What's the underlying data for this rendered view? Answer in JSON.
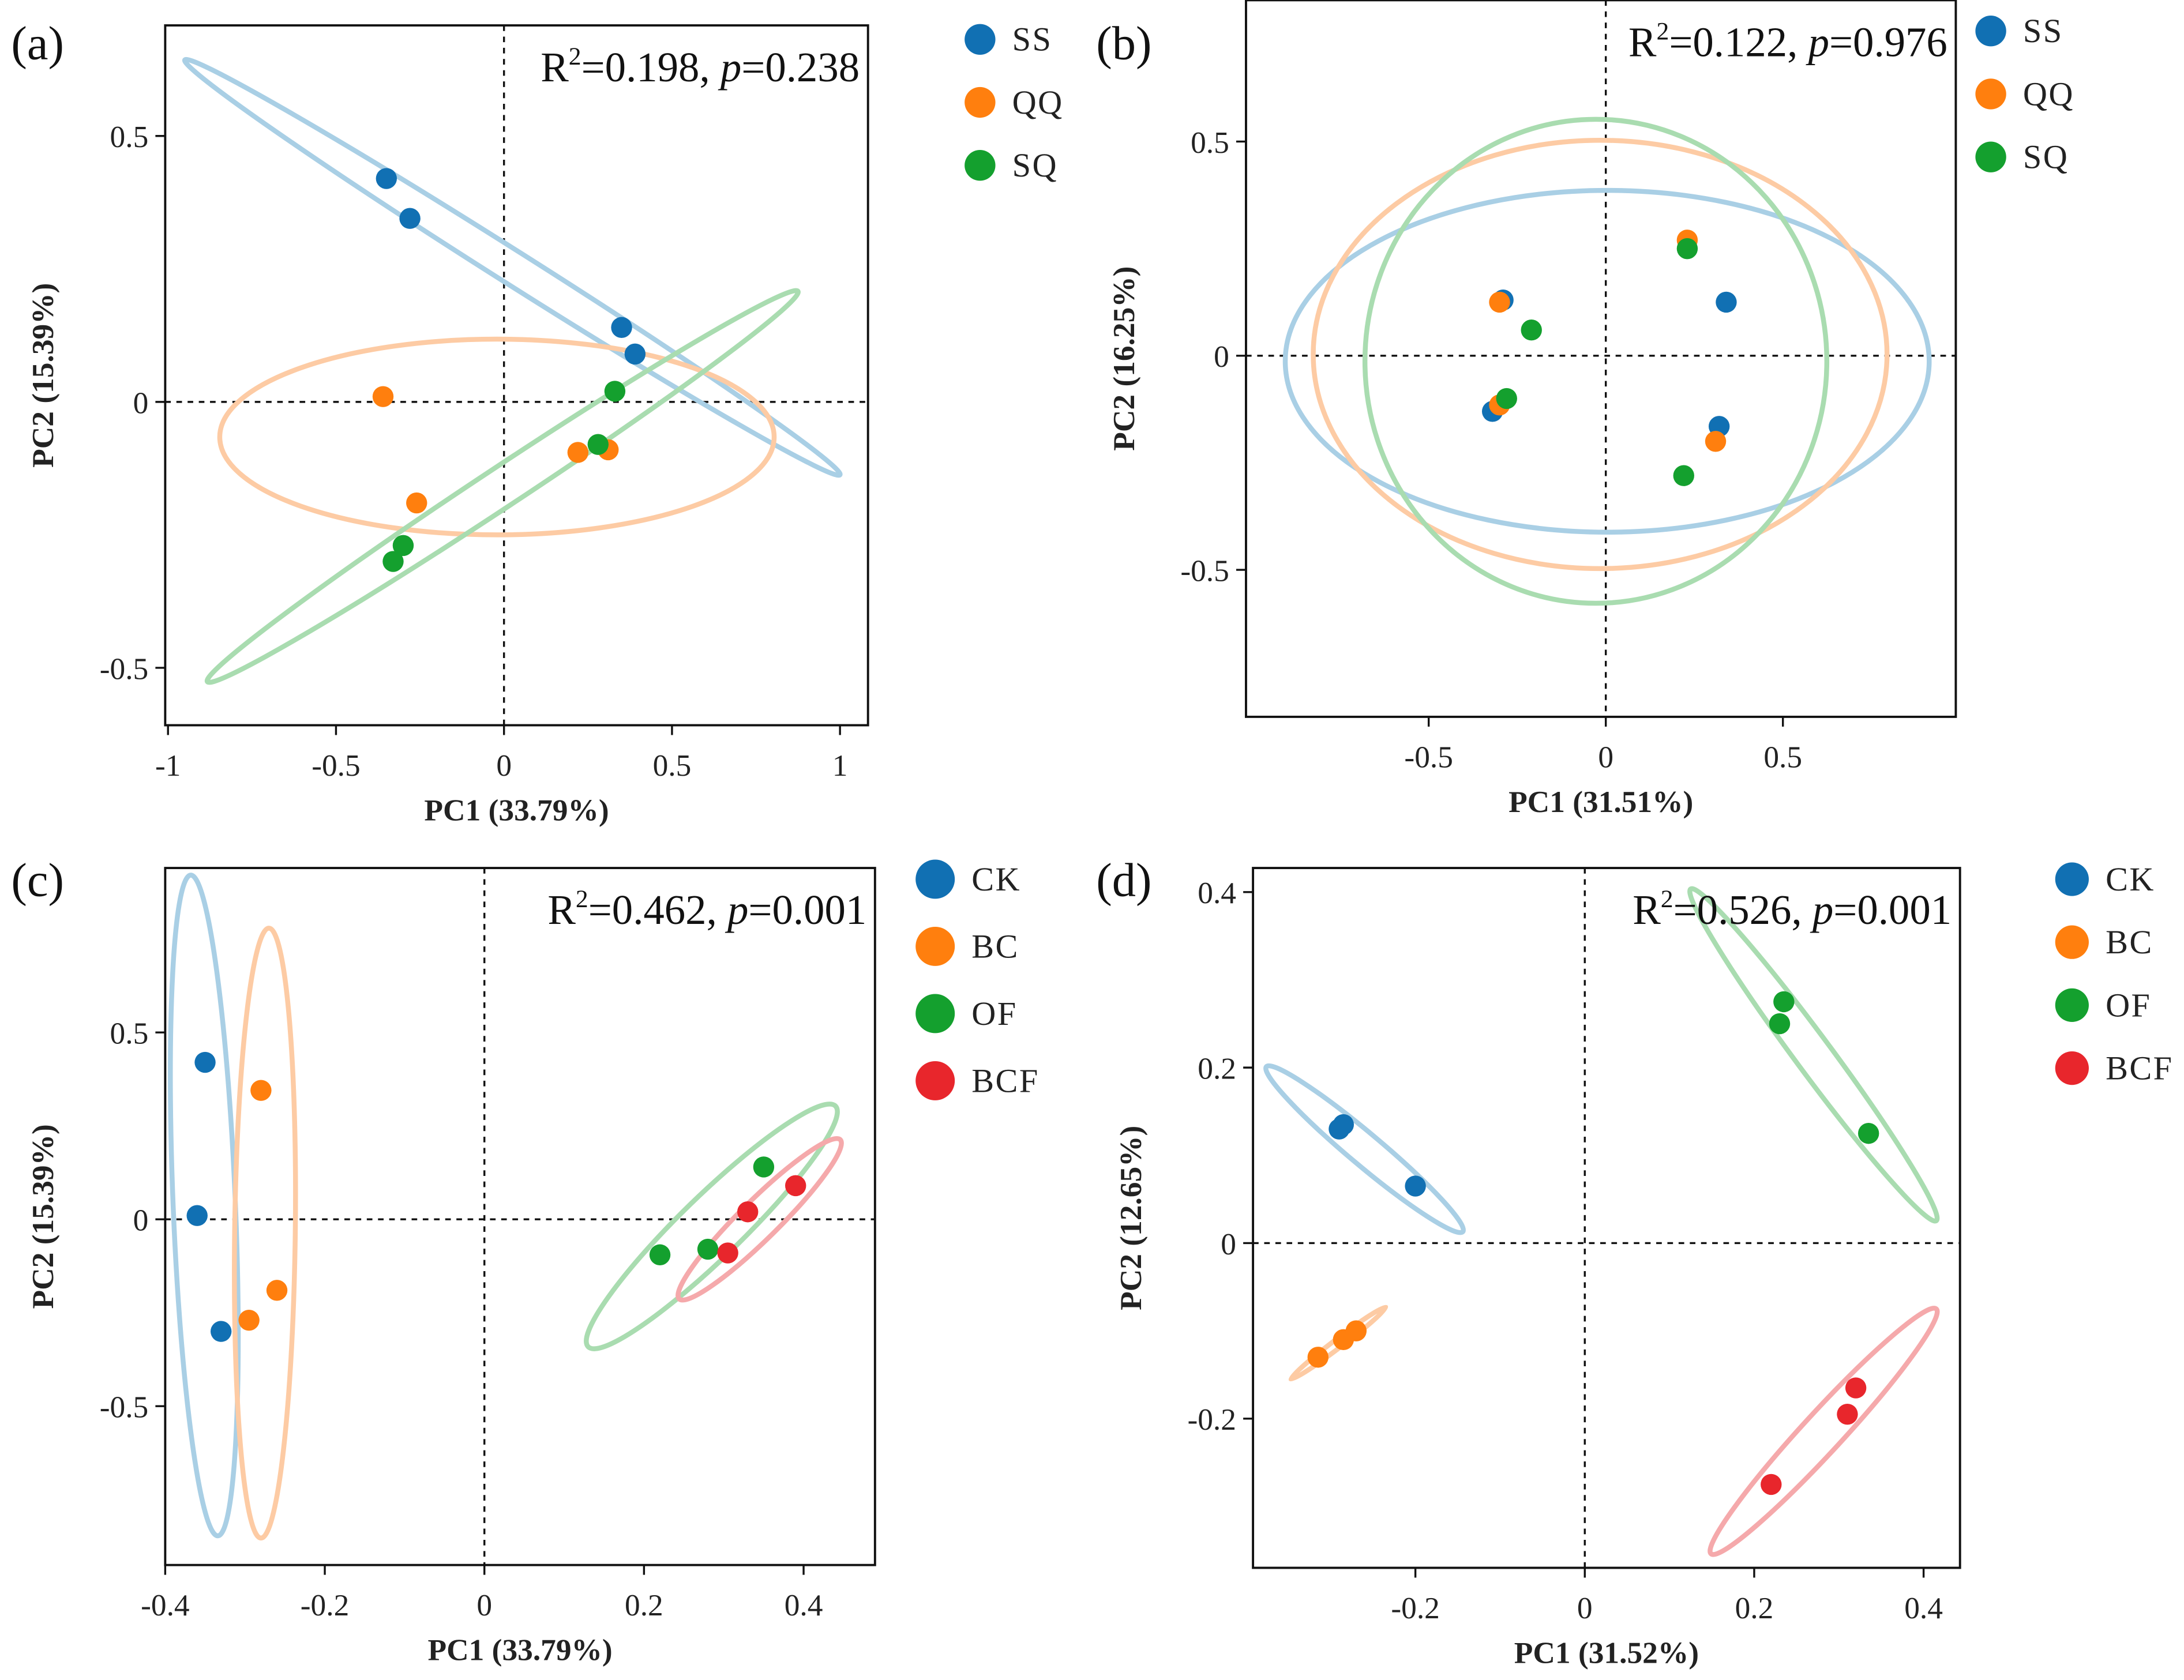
{
  "chart_data": [
    {
      "panel": "(a)",
      "type": "scatter",
      "xlabel": "PC1 (33.79%)",
      "ylabel": "PC2 (15.39%)",
      "xlim": [
        -1.01,
        1.08
      ],
      "ylim": [
        -0.61,
        0.7
      ],
      "xticks": [
        {
          "v": -1,
          "label": "-1"
        },
        {
          "v": -0.5,
          "label": "-0.5"
        },
        {
          "v": 0,
          "label": "0"
        },
        {
          "v": 0.5,
          "label": "0.5"
        },
        {
          "v": 1,
          "label": "1"
        }
      ],
      "yticks": [
        {
          "v": 0.5,
          "label": "0.5"
        },
        {
          "v": 0,
          "label": "0"
        },
        {
          "v": -0.5,
          "label": "-0.5"
        }
      ],
      "annotation": {
        "r2_prefix": "R",
        "r2_sup": "2",
        "r2_value": "=0.198, ",
        "p_label": "p",
        "p_value": "=0.238"
      },
      "series": [
        {
          "name": "SS",
          "color": "#1170b3",
          "ellipse_color": "#a9cfe5",
          "points": [
            [
              -0.35,
              0.42
            ],
            [
              -0.28,
              0.345
            ],
            [
              0.35,
              0.14
            ],
            [
              0.39,
              0.09
            ]
          ],
          "ellipse": {
            "center": [
              0.025,
              0.253
            ],
            "major_end": [
              1.0,
              -0.137
            ],
            "minor_end": [
              -0.002,
              0.227
            ]
          }
        },
        {
          "name": "QQ",
          "color": "#ff7f0e",
          "ellipse_color": "#fdcba4",
          "points": [
            [
              -0.36,
              0.01
            ],
            [
              -0.26,
              -0.19
            ],
            [
              0.22,
              -0.095
            ],
            [
              0.31,
              -0.09
            ]
          ],
          "ellipse": {
            "center": [
              -0.021,
              -0.066
            ],
            "major_end": [
              0.804,
              -0.066
            ],
            "minor_end": [
              -0.021,
              0.118
            ]
          }
        },
        {
          "name": "SQ",
          "color": "#14a02e",
          "ellipse_color": "#a9dcb0",
          "points": [
            [
              -0.3,
              -0.27
            ],
            [
              -0.33,
              -0.3
            ],
            [
              0.28,
              -0.08
            ],
            [
              0.33,
              0.02
            ]
          ],
          "ellipse": {
            "center": [
              -0.004,
              -0.159
            ],
            "major_end": [
              0.875,
              0.208
            ],
            "minor_end": [
              0.028,
              -0.19
            ]
          }
        }
      ]
    },
    {
      "panel": "(b)",
      "type": "scatter",
      "xlabel": "PC1 (31.51%)",
      "ylabel": "PC2 (16.25%)",
      "xlim": [
        -1.0,
        1.0
      ],
      "ylim": [
        -0.84,
        0.83
      ],
      "xticks": [
        {
          "v": -0.5,
          "label": "-0.5"
        },
        {
          "v": 0,
          "label": "0"
        },
        {
          "v": 0.5,
          "label": "0.5"
        }
      ],
      "yticks": [
        {
          "v": 0.5,
          "label": "0.5"
        },
        {
          "v": 0,
          "label": "0"
        },
        {
          "v": -0.5,
          "label": "-0.5"
        }
      ],
      "annotation": {
        "r2_prefix": "R",
        "r2_sup": "2",
        "r2_value": "=0.122, ",
        "p_label": "p",
        "p_value": "=0.976"
      },
      "series": [
        {
          "name": "SS",
          "color": "#1170b3",
          "ellipse_color": "#a9cfe5",
          "points": [
            [
              -0.29,
              0.13
            ],
            [
              -0.32,
              -0.13
            ],
            [
              0.34,
              0.125
            ],
            [
              0.32,
              -0.165
            ]
          ],
          "ellipse": {
            "center": [
              0.004,
              -0.013
            ],
            "major_end": [
              0.913,
              -0.013
            ],
            "minor_end": [
              0.004,
              0.386
            ]
          }
        },
        {
          "name": "QQ",
          "color": "#ff7f0e",
          "ellipse_color": "#fdcba4",
          "points": [
            [
              -0.3,
              0.125
            ],
            [
              -0.3,
              -0.115
            ],
            [
              0.23,
              0.27
            ],
            [
              0.31,
              -0.2
            ]
          ],
          "ellipse": {
            "center": [
              -0.016,
              0.003
            ],
            "major_end": [
              0.794,
              0.003
            ],
            "minor_end": [
              -0.016,
              0.503
            ]
          }
        },
        {
          "name": "SQ",
          "color": "#14a02e",
          "ellipse_color": "#a9dcb0",
          "points": [
            [
              -0.21,
              0.06
            ],
            [
              -0.28,
              -0.1
            ],
            [
              0.23,
              0.25
            ],
            [
              0.22,
              -0.28
            ]
          ],
          "ellipse": {
            "center": [
              -0.028,
              -0.013
            ],
            "major_end": [
              -0.028,
              0.552
            ],
            "minor_end": [
              0.624,
              -0.013
            ]
          }
        }
      ]
    },
    {
      "panel": "(c)",
      "type": "scatter",
      "xlabel": "PC1 (33.79%)",
      "ylabel": "PC2 (15.39%)",
      "xlim": [
        -0.4,
        0.49
      ],
      "ylim": [
        -0.92,
        0.94
      ],
      "xticks": [
        {
          "v": -0.4,
          "label": "-0.4"
        },
        {
          "v": -0.2,
          "label": "-0.2"
        },
        {
          "v": 0,
          "label": "0"
        },
        {
          "v": 0.2,
          "label": "0.2"
        },
        {
          "v": 0.4,
          "label": "0.4"
        }
      ],
      "yticks": [
        {
          "v": 0.5,
          "label": "0.5"
        },
        {
          "v": 0,
          "label": "0"
        },
        {
          "v": -0.5,
          "label": "-0.5"
        }
      ],
      "annotation": {
        "r2_prefix": "R",
        "r2_sup": "2",
        "r2_value": "=0.462, ",
        "p_label": "p",
        "p_value": "=0.001"
      },
      "series": [
        {
          "name": "CK",
          "color": "#1170b3",
          "ellipse_color": "#a9cfe5",
          "points": [
            [
              -0.35,
              0.42
            ],
            [
              -0.36,
              0.01
            ],
            [
              -0.33,
              -0.3
            ]
          ],
          "ellipse": {
            "center": [
              -0.351,
              0.037
            ],
            "major_end": [
              -0.368,
              0.921
            ],
            "minor_end": [
              -0.312,
              0.034
            ]
          }
        },
        {
          "name": "BC",
          "color": "#ff7f0e",
          "ellipse_color": "#fdcba4",
          "points": [
            [
              -0.28,
              0.345
            ],
            [
              -0.26,
              -0.19
            ],
            [
              -0.295,
              -0.27
            ]
          ],
          "ellipse": {
            "center": [
              -0.275,
              -0.037
            ],
            "major_end": [
              -0.27,
              0.779
            ],
            "minor_end": [
              -0.237,
              -0.037
            ]
          }
        },
        {
          "name": "OF",
          "color": "#14a02e",
          "ellipse_color": "#a9dcb0",
          "points": [
            [
              0.22,
              -0.095
            ],
            [
              0.28,
              -0.08
            ],
            [
              0.35,
              0.14
            ]
          ],
          "ellipse": {
            "center": [
              0.285,
              -0.019
            ],
            "major_end": [
              0.44,
              0.303
            ],
            "minor_end": [
              0.312,
              -0.078
            ]
          }
        },
        {
          "name": "BCF",
          "color": "#e8262c",
          "ellipse_color": "#f5a9ab",
          "points": [
            [
              0.33,
              0.02
            ],
            [
              0.305,
              -0.09
            ],
            [
              0.39,
              0.09
            ]
          ],
          "ellipse": {
            "center": [
              0.345,
              0.0
            ],
            "major_end": [
              0.446,
              0.213
            ],
            "minor_end": [
              0.362,
              -0.037
            ]
          }
        }
      ]
    },
    {
      "panel": "(d)",
      "type": "scatter",
      "xlabel": "PC1 (31.52%)",
      "ylabel": "PC2 (12.65%)",
      "xlim": [
        -0.39,
        0.44
      ],
      "ylim": [
        -0.37,
        0.43
      ],
      "xticks": [
        {
          "v": -0.2,
          "label": "-0.2"
        },
        {
          "v": 0,
          "label": "0"
        },
        {
          "v": 0.2,
          "label": "0.2"
        },
        {
          "v": 0.4,
          "label": "0.4"
        }
      ],
      "yticks": [
        {
          "v": 0.4,
          "label": "0.4"
        },
        {
          "v": 0.2,
          "label": "0.2"
        },
        {
          "v": 0,
          "label": "0"
        },
        {
          "v": -0.2,
          "label": "-0.2"
        }
      ],
      "annotation": {
        "r2_prefix": "R",
        "r2_sup": "2",
        "r2_value": "=0.526, ",
        "p_label": "p",
        "p_value": "=0.001"
      },
      "series": [
        {
          "name": "CK",
          "color": "#1170b3",
          "ellipse_color": "#a9cfe5",
          "points": [
            [
              -0.29,
              0.13
            ],
            [
              -0.285,
              0.135
            ],
            [
              -0.2,
              0.065
            ]
          ],
          "ellipse": {
            "center": [
              -0.26,
              0.107
            ],
            "major_end": [
              -0.144,
              0.013
            ],
            "minor_end": [
              -0.272,
              0.093
            ]
          }
        },
        {
          "name": "BC",
          "color": "#ff7f0e",
          "ellipse_color": "#fdcba4",
          "points": [
            [
              -0.315,
              -0.13
            ],
            [
              -0.285,
              -0.11
            ],
            [
              -0.27,
              -0.1
            ]
          ],
          "ellipse": {
            "center": [
              -0.291,
              -0.114
            ],
            "major_end": [
              -0.235,
              -0.073
            ],
            "minor_end": [
              -0.288,
              -0.118
            ]
          }
        },
        {
          "name": "OF",
          "color": "#14a02e",
          "ellipse_color": "#a9dcb0",
          "points": [
            [
              0.23,
              0.25
            ],
            [
              0.235,
              0.275
            ],
            [
              0.335,
              0.125
            ]
          ],
          "ellipse": {
            "center": [
              0.27,
              0.2145
            ],
            "major_end": [
              0.415,
              0.0255
            ],
            "minor_end": [
              0.253,
              0.202
            ]
          }
        },
        {
          "name": "BCF",
          "color": "#e8262c",
          "ellipse_color": "#f5a9ab",
          "points": [
            [
              0.22,
              -0.275
            ],
            [
              0.31,
              -0.195
            ],
            [
              0.32,
              -0.165
            ]
          ],
          "ellipse": {
            "center": [
              0.282,
              -0.2145
            ],
            "major_end": [
              0.415,
              -0.075
            ],
            "minor_end": [
              0.299,
              -0.23
            ]
          }
        }
      ]
    }
  ]
}
